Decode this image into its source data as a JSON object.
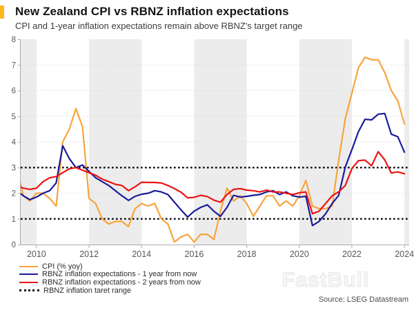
{
  "header": {
    "title": "New Zealand CPI vs RBNZ inflation expectations",
    "subtitle": "CPI and 1-year inflation expectations remain above RBNZ's target range"
  },
  "accent_color": "#FFB81C",
  "watermark": "FastBull",
  "source": "Source: LSEG Datastream",
  "chart_data": {
    "type": "line",
    "title": "New Zealand CPI vs RBNZ inflation expectations",
    "x_unit": "year, quarterly observations 2009Q1-2023Q4 plotted at quarter end",
    "x_first": 2009.25,
    "x_step": 0.25,
    "xlim": [
      2009.4,
      2024.18
    ],
    "ylim": [
      0,
      8
    ],
    "y_ticks": [
      0,
      1,
      2,
      3,
      4,
      5,
      6,
      7,
      8
    ],
    "x_ticks": [
      2010,
      2012,
      2014,
      2016,
      2018,
      2020,
      2022,
      2024
    ],
    "grid": "light dotted horizontal lines at integers",
    "shaded_bands": [
      [
        2008,
        2010
      ],
      [
        2012,
        2014
      ],
      [
        2016,
        2018
      ],
      [
        2020,
        2022
      ],
      [
        2024,
        2026
      ]
    ],
    "band_color": "#ececec",
    "axis_color": "#ababab",
    "tick_label_color": "#575757",
    "legend_position": "bottom-left",
    "target_range": {
      "label": "RBNZ inflation taret range",
      "values": [
        1,
        3
      ],
      "color": "#141414",
      "style": "dotted"
    },
    "series": [
      {
        "name": "CPI (% yoy)",
        "color": "#F8A33B",
        "values": [
          3.0,
          1.9,
          1.7,
          2.0,
          2.0,
          1.8,
          1.5,
          4.0,
          4.5,
          5.3,
          4.6,
          1.8,
          1.6,
          1.0,
          0.8,
          0.9,
          0.9,
          0.7,
          1.4,
          1.6,
          1.5,
          1.6,
          1.0,
          0.8,
          0.1,
          0.3,
          0.4,
          0.1,
          0.4,
          0.4,
          0.2,
          1.3,
          2.2,
          1.7,
          1.9,
          1.6,
          1.1,
          1.5,
          1.9,
          1.9,
          1.5,
          1.7,
          1.5,
          1.9,
          2.5,
          1.5,
          1.4,
          1.4,
          1.5,
          3.3,
          4.9,
          5.9,
          6.9,
          7.3,
          7.2,
          7.2,
          6.7,
          6.0,
          5.6,
          4.7
        ]
      },
      {
        "name": "RBNZ inflation expectations - 1 year from now",
        "color": "#1A1A9B",
        "values": [
          2.1,
          1.9,
          1.75,
          1.85,
          2.0,
          2.1,
          2.4,
          3.85,
          3.35,
          3.0,
          3.1,
          2.85,
          2.6,
          2.45,
          2.3,
          2.1,
          1.9,
          1.72,
          1.88,
          1.96,
          2.0,
          2.1,
          2.05,
          1.95,
          1.65,
          1.35,
          1.07,
          1.3,
          1.45,
          1.55,
          1.3,
          1.1,
          1.45,
          1.92,
          1.85,
          1.88,
          1.92,
          1.95,
          2.05,
          2.1,
          1.95,
          2.05,
          1.9,
          1.85,
          1.88,
          0.74,
          0.9,
          1.2,
          1.6,
          1.92,
          3.02,
          3.7,
          4.4,
          4.88,
          4.86,
          5.08,
          5.11,
          4.3,
          4.2,
          3.6
        ]
      },
      {
        "name": "RBNZ inflation expectations - 2 years from now",
        "color": "#EC1212",
        "values": [
          2.3,
          2.2,
          2.15,
          2.2,
          2.45,
          2.6,
          2.65,
          2.8,
          2.95,
          3.0,
          2.9,
          2.8,
          2.7,
          2.55,
          2.45,
          2.35,
          2.3,
          2.1,
          2.25,
          2.43,
          2.42,
          2.42,
          2.4,
          2.3,
          2.18,
          2.04,
          1.82,
          1.84,
          1.92,
          1.87,
          1.73,
          1.65,
          1.95,
          2.15,
          2.18,
          2.12,
          2.1,
          2.05,
          2.12,
          2.05,
          2.05,
          2.0,
          1.95,
          2.02,
          2.05,
          1.2,
          1.3,
          1.6,
          1.9,
          2.05,
          2.3,
          2.96,
          3.27,
          3.29,
          3.07,
          3.62,
          3.3,
          2.79,
          2.83,
          2.76
        ]
      }
    ]
  }
}
